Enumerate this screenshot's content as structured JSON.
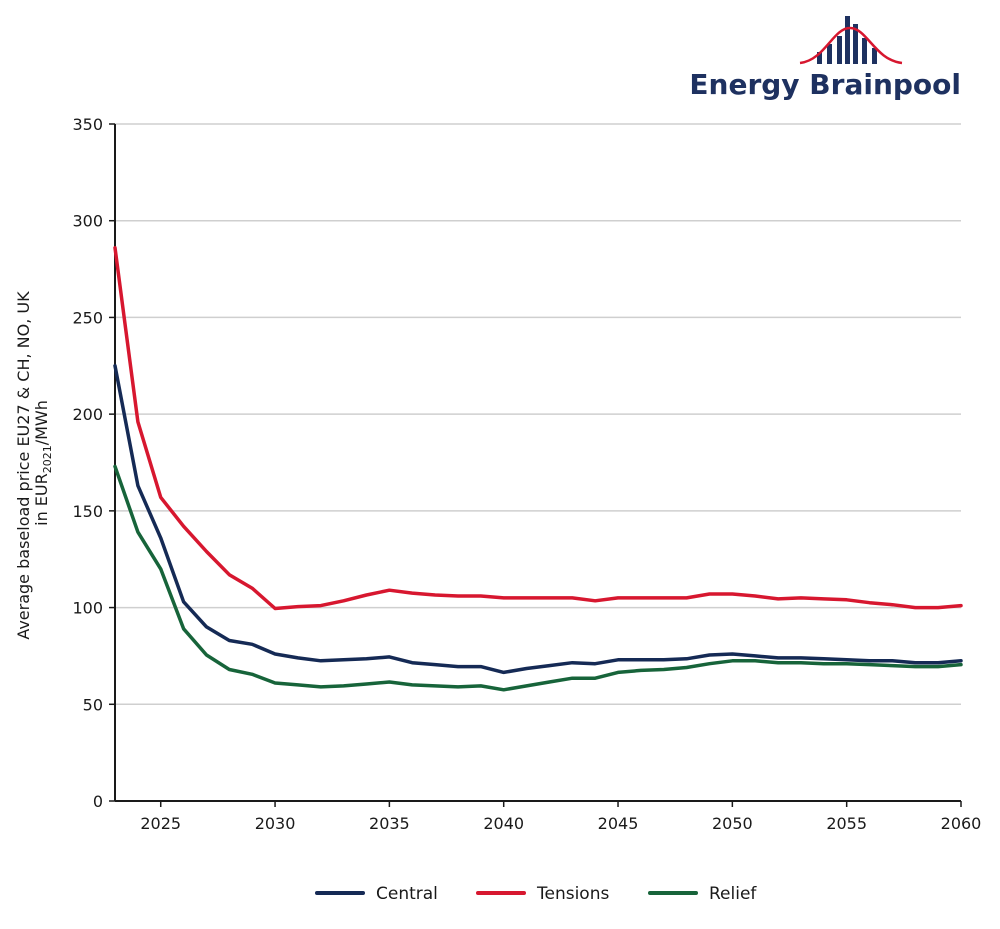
{
  "brand": {
    "name": "Energy Brainpool",
    "text_color": "#1e3160",
    "accent_color": "#d7172f"
  },
  "chart_data": {
    "type": "line",
    "ylabel_line1": "Average baseload price EU27 & CH, NO, UK",
    "ylabel_line2_prefix": "in EUR",
    "ylabel_line2_sub": "2021",
    "ylabel_line2_suffix": "/MWh",
    "xlim": [
      2023,
      2060
    ],
    "ylim": [
      0,
      350
    ],
    "xticks": [
      2025,
      2030,
      2035,
      2040,
      2045,
      2050,
      2055,
      2060
    ],
    "yticks": [
      0,
      50,
      100,
      150,
      200,
      250,
      300,
      350
    ],
    "grid": true,
    "legend_position": "bottom-center",
    "x": [
      2023,
      2024,
      2025,
      2026,
      2027,
      2028,
      2029,
      2030,
      2031,
      2032,
      2033,
      2034,
      2035,
      2036,
      2037,
      2038,
      2039,
      2040,
      2041,
      2042,
      2043,
      2044,
      2045,
      2046,
      2047,
      2048,
      2049,
      2050,
      2051,
      2052,
      2053,
      2054,
      2055,
      2056,
      2057,
      2058,
      2059,
      2060
    ],
    "series": [
      {
        "name": "Central",
        "color": "#152a55",
        "values": [
          225,
          163,
          136,
          103,
          90,
          83,
          81,
          76,
          74,
          72.5,
          73,
          73.5,
          74.5,
          71.5,
          70.5,
          69.5,
          69.5,
          66.5,
          68.5,
          70,
          71.5,
          71,
          73,
          73,
          73,
          73.5,
          75.5,
          76,
          75,
          74,
          74,
          73.5,
          73,
          72.5,
          72.5,
          71.5,
          71.5,
          72.5
        ]
      },
      {
        "name": "Tensions",
        "color": "#d7172f",
        "values": [
          286,
          196,
          157,
          142,
          129,
          117,
          110,
          99.5,
          100.5,
          101,
          103.5,
          106.5,
          109,
          107.5,
          106.5,
          106,
          106,
          105,
          105,
          105,
          105,
          103.5,
          105,
          105,
          105,
          105,
          107,
          107,
          106,
          104.5,
          105,
          104.5,
          104,
          102.5,
          101.5,
          100,
          100,
          101
        ]
      },
      {
        "name": "Relief",
        "color": "#17643a",
        "values": [
          173,
          139,
          120,
          89,
          75.5,
          68,
          65.5,
          61,
          60,
          59,
          59.5,
          60.5,
          61.5,
          60,
          59.5,
          59,
          59.5,
          57.5,
          59.5,
          61.5,
          63.5,
          63.5,
          66.5,
          67.5,
          68,
          69,
          71,
          72.5,
          72.5,
          71.5,
          71.5,
          71,
          71,
          70.5,
          70,
          69.5,
          69.5,
          70.5
        ]
      }
    ]
  }
}
